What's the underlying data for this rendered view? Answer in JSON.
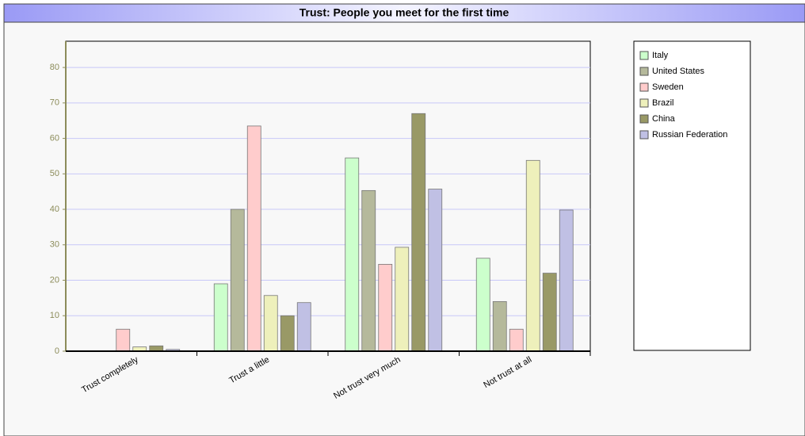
{
  "chart_data": {
    "type": "bar",
    "title": "Trust: People you meet for the first time",
    "categories": [
      "Trust completely",
      "Trust a little",
      "Not trust very much",
      "Not trust at all"
    ],
    "series": [
      {
        "name": "Italy",
        "color": "#ccffcc",
        "values": [
          0,
          19,
          54.5,
          26.2
        ]
      },
      {
        "name": "United States",
        "color": "#b5b99b",
        "values": [
          0,
          40,
          45.3,
          14
        ]
      },
      {
        "name": "Sweden",
        "color": "#ffcccc",
        "values": [
          6.2,
          63.5,
          24.5,
          6.2
        ]
      },
      {
        "name": "Brazil",
        "color": "#eef0bb",
        "values": [
          1.2,
          15.7,
          29.3,
          53.8
        ]
      },
      {
        "name": "China",
        "color": "#999966",
        "values": [
          1.5,
          10,
          67,
          22
        ]
      },
      {
        "name": "Russian Federation",
        "color": "#c0c0e4",
        "values": [
          0.5,
          13.7,
          45.7,
          39.8
        ]
      }
    ],
    "ylim": [
      0,
      87.4
    ],
    "yticks": [
      0,
      10,
      20,
      30,
      40,
      50,
      60,
      70,
      80
    ],
    "grid": true,
    "legend": "right"
  }
}
